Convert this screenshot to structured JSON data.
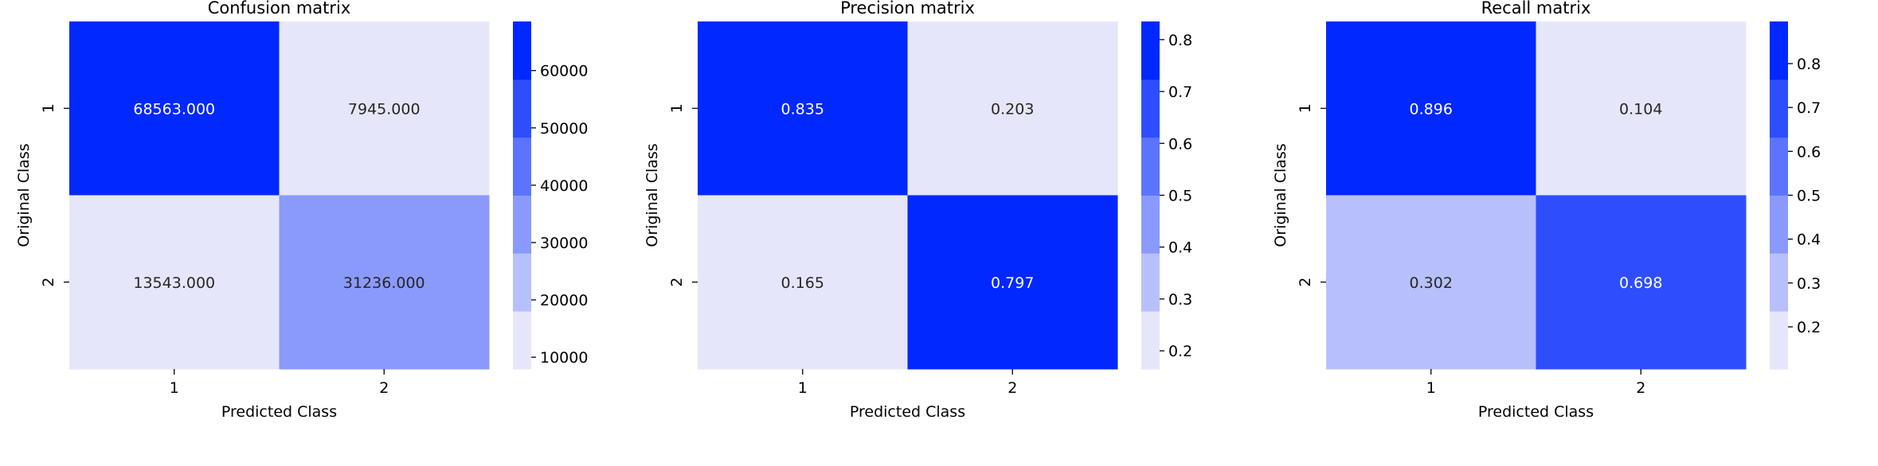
{
  "chart_data": [
    {
      "type": "heatmap",
      "title": "Confusion matrix",
      "xlabel": "Predicted Class",
      "ylabel": "Original Class",
      "x_categories": [
        "1",
        "2"
      ],
      "y_categories": [
        "1",
        "2"
      ],
      "values": [
        [
          68563.0,
          7945.0
        ],
        [
          13543.0,
          31236.0
        ]
      ],
      "cell_labels": [
        [
          "68563.000",
          "7945.000"
        ],
        [
          "13543.000",
          "31236.000"
        ]
      ],
      "colorbar": {
        "range": [
          7945.0,
          68563.0
        ],
        "ticks": [
          10000,
          20000,
          30000,
          40000,
          50000,
          60000
        ],
        "tick_labels": [
          "10000",
          "20000",
          "30000",
          "40000",
          "50000",
          "60000"
        ]
      }
    },
    {
      "type": "heatmap",
      "title": "Precision matrix",
      "xlabel": "Predicted Class",
      "ylabel": "Original Class",
      "x_categories": [
        "1",
        "2"
      ],
      "y_categories": [
        "1",
        "2"
      ],
      "values": [
        [
          0.835,
          0.203
        ],
        [
          0.165,
          0.797
        ]
      ],
      "cell_labels": [
        [
          "0.835",
          "0.203"
        ],
        [
          "0.165",
          "0.797"
        ]
      ],
      "colorbar": {
        "range": [
          0.165,
          0.835
        ],
        "ticks": [
          0.2,
          0.3,
          0.4,
          0.5,
          0.6,
          0.7,
          0.8
        ],
        "tick_labels": [
          "0.2",
          "0.3",
          "0.4",
          "0.5",
          "0.6",
          "0.7",
          "0.8"
        ]
      }
    },
    {
      "type": "heatmap",
      "title": "Recall matrix",
      "xlabel": "Predicted Class",
      "ylabel": "Original Class",
      "x_categories": [
        "1",
        "2"
      ],
      "y_categories": [
        "1",
        "2"
      ],
      "values": [
        [
          0.896,
          0.104
        ],
        [
          0.302,
          0.698
        ]
      ],
      "cell_labels": [
        [
          "0.896",
          "0.104"
        ],
        [
          "0.302",
          "0.698"
        ]
      ],
      "colorbar": {
        "range": [
          0.104,
          0.896
        ],
        "ticks": [
          0.2,
          0.3,
          0.4,
          0.5,
          0.6,
          0.7,
          0.8
        ],
        "tick_labels": [
          "0.2",
          "0.3",
          "0.4",
          "0.5",
          "0.6",
          "0.7",
          "0.8"
        ]
      }
    }
  ],
  "colormap": {
    "name": "light-to-blue",
    "levels": 6,
    "low": "#e6e6fa",
    "high": "#0028ff",
    "text_on_light": "#262626",
    "text_on_dark": "#ffffff",
    "axis_color": "#000000",
    "title_color": "#000000"
  }
}
